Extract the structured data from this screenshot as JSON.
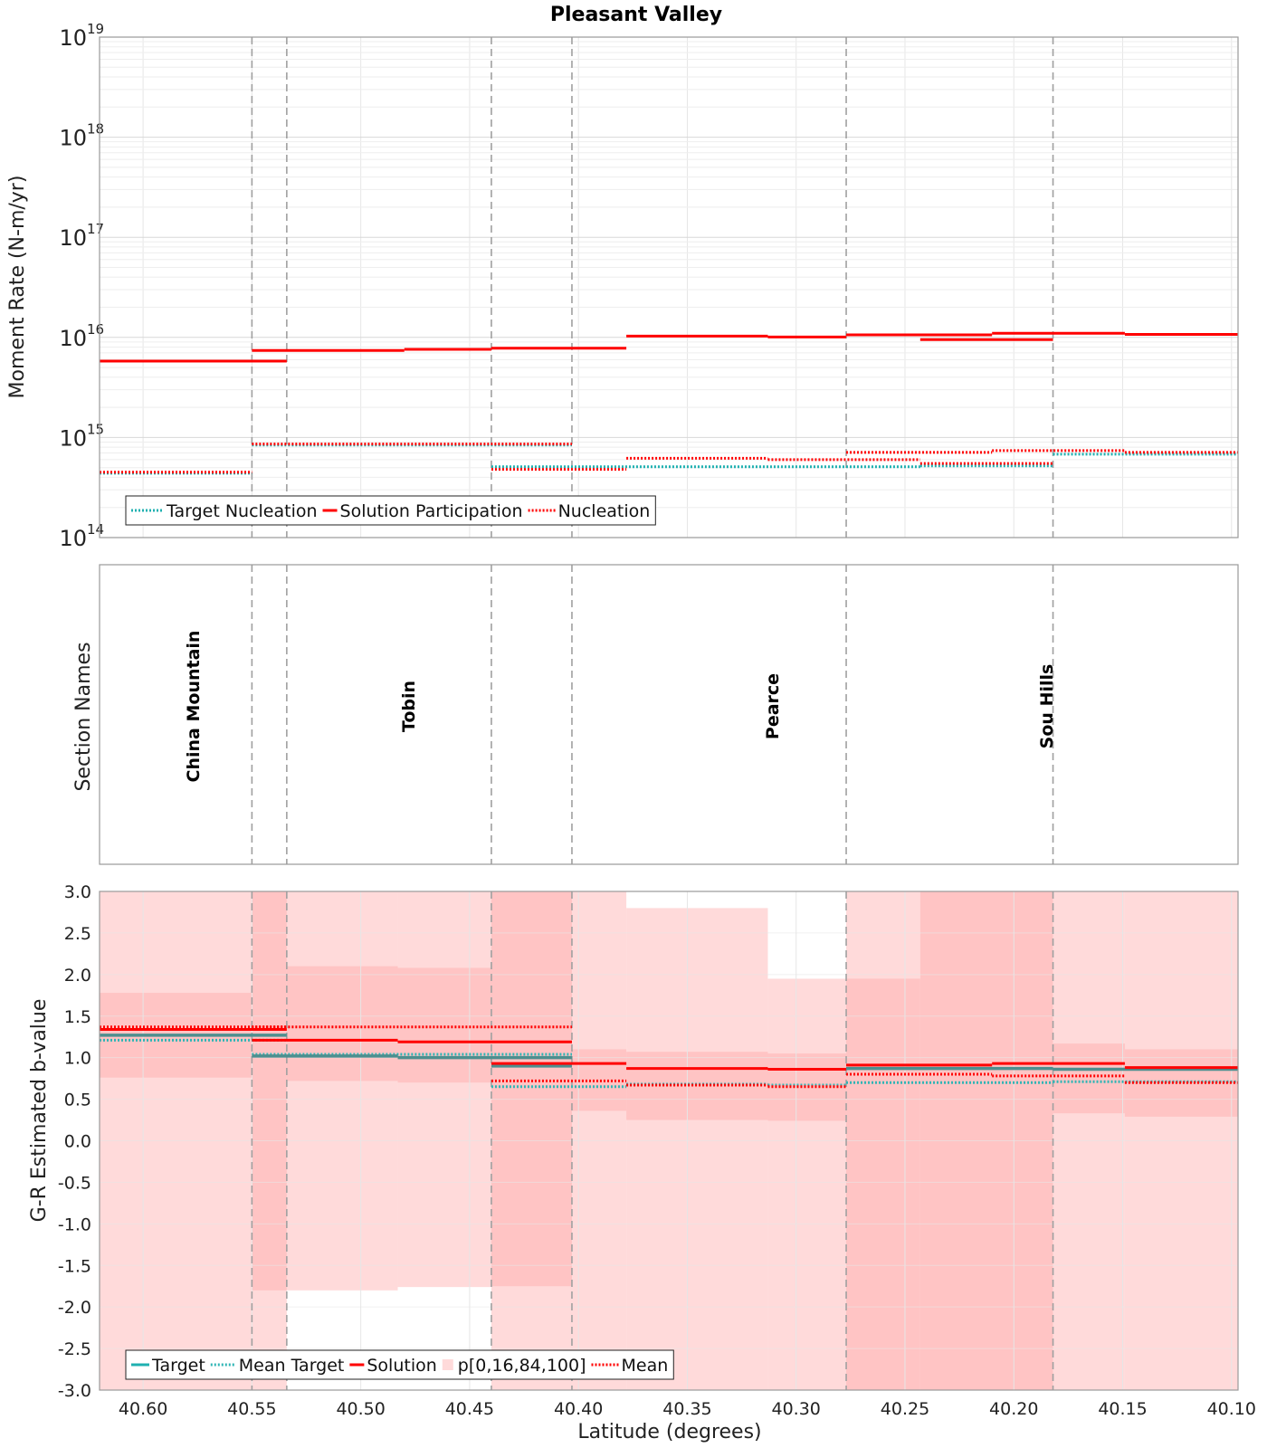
{
  "figure_title": "Pleasant Valley",
  "xlabel": "Latitude (degrees)",
  "xlim": [
    40.62,
    40.097
  ],
  "x_ticks": [
    40.6,
    40.55,
    40.5,
    40.45,
    40.4,
    40.35,
    40.3,
    40.25,
    40.2,
    40.15,
    40.1
  ],
  "x_tick_labels": [
    "40.60",
    "40.55",
    "40.50",
    "40.45",
    "40.40",
    "40.35",
    "40.30",
    "40.25",
    "40.20",
    "40.15",
    "40.10"
  ],
  "section_boundaries": [
    40.55,
    40.534,
    40.44,
    40.403,
    40.277,
    40.182
  ],
  "colors": {
    "solution": "#ff0000",
    "target": "#1fb0b0",
    "band_light": "#ffdada",
    "band_dark": "#ffbcbc",
    "mean_target": "#2fb5b5",
    "target_line_dark": "#4d8f8f",
    "grid": "#e6e6e6",
    "boundary": "#a0a0a0"
  },
  "chart_data": [
    {
      "type": "line",
      "title": "Pleasant Valley",
      "ylabel": "Moment Rate (N-m/yr)",
      "yscale": "log",
      "ylim": [
        100000000000000.0,
        1e+19
      ],
      "y_ticks": [
        {
          "base": "10",
          "exp": "14"
        },
        {
          "base": "10",
          "exp": "15"
        },
        {
          "base": "10",
          "exp": "16"
        },
        {
          "base": "10",
          "exp": "17"
        },
        {
          "base": "10",
          "exp": "18"
        },
        {
          "base": "10",
          "exp": "19"
        }
      ],
      "legend_position": "bottom-left",
      "legend": [
        "Target Nucleation",
        "Solution Participation",
        "Nucleation"
      ],
      "series": [
        {
          "name": "Solution Participation",
          "style": "solid",
          "color": "#ff0000",
          "segments": [
            {
              "x": [
                40.62,
                40.534
              ],
              "y": 5800000000000000.0
            },
            {
              "x": [
                40.55,
                40.48
              ],
              "y": 7400000000000000.0
            },
            {
              "x": [
                40.48,
                40.44
              ],
              "y": 7600000000000000.0
            },
            {
              "x": [
                40.44,
                40.403
              ],
              "y": 7800000000000000.0
            },
            {
              "x": [
                40.403,
                40.378
              ],
              "y": 7800000000000000.0
            },
            {
              "x": [
                40.378,
                40.313
              ],
              "y": 1.03e+16
            },
            {
              "x": [
                40.313,
                40.277
              ],
              "y": 1.01e+16
            },
            {
              "x": [
                40.277,
                40.21
              ],
              "y": 1.06e+16
            },
            {
              "x": [
                40.243,
                40.182
              ],
              "y": 9500000000000000.0
            },
            {
              "x": [
                40.21,
                40.149
              ],
              "y": 1.1e+16
            },
            {
              "x": [
                40.149,
                40.097
              ],
              "y": 1.07e+16
            }
          ]
        },
        {
          "name": "Target Nucleation",
          "style": "dotted",
          "color": "#1fb0b0",
          "segments": [
            {
              "x": [
                40.62,
                40.55
              ],
              "y": 440000000000000.0
            },
            {
              "x": [
                40.55,
                40.403
              ],
              "y": 840000000000000.0
            },
            {
              "x": [
                40.44,
                40.243
              ],
              "y": 510000000000000.0
            },
            {
              "x": [
                40.243,
                40.182
              ],
              "y": 520000000000000.0
            },
            {
              "x": [
                40.182,
                40.097
              ],
              "y": 680000000000000.0
            }
          ]
        },
        {
          "name": "Nucleation",
          "style": "dotted",
          "color": "#ff0000",
          "segments": [
            {
              "x": [
                40.62,
                40.55
              ],
              "y": 450000000000000.0
            },
            {
              "x": [
                40.55,
                40.403
              ],
              "y": 860000000000000.0
            },
            {
              "x": [
                40.44,
                40.378
              ],
              "y": 480000000000000.0
            },
            {
              "x": [
                40.378,
                40.313
              ],
              "y": 620000000000000.0
            },
            {
              "x": [
                40.313,
                40.243
              ],
              "y": 600000000000000.0
            },
            {
              "x": [
                40.277,
                40.21
              ],
              "y": 710000000000000.0
            },
            {
              "x": [
                40.243,
                40.182
              ],
              "y": 550000000000000.0
            },
            {
              "x": [
                40.21,
                40.149
              ],
              "y": 740000000000000.0
            },
            {
              "x": [
                40.149,
                40.097
              ],
              "y": 710000000000000.0
            }
          ]
        }
      ]
    },
    {
      "type": "table",
      "ylabel": "Section Names",
      "sections": [
        {
          "name": "China Mountain",
          "x": 40.578
        },
        {
          "name": "Tobin",
          "x": 40.479
        },
        {
          "name": "Pearce",
          "x": 40.312
        },
        {
          "name": "Sou Hills",
          "x": 40.186
        }
      ]
    },
    {
      "type": "line",
      "ylabel": "G-R Estimated b-value",
      "ylim": [
        -3.0,
        3.0
      ],
      "y_tick_labels": [
        "3.0",
        "2.5",
        "2.0",
        "1.5",
        "1.0",
        "0.5",
        "0.0",
        "-0.5",
        "-1.0",
        "-1.5",
        "-2.0",
        "-2.5",
        "-3.0"
      ],
      "legend_position": "bottom-left",
      "legend": [
        "Target",
        "Mean Target",
        "Solution",
        "p[0,16,84,100]",
        "Mean"
      ],
      "bands": [
        {
          "x": [
            40.62,
            40.55
          ],
          "p0": -3.0,
          "p100": 3.0,
          "p16": 0.76,
          "p84": 1.78
        },
        {
          "x": [
            40.55,
            40.534
          ],
          "p0": -3.0,
          "p100": 3.0,
          "p16": -1.8,
          "p84": 3.0
        },
        {
          "x": [
            40.534,
            40.483
          ],
          "p0": -1.8,
          "p100": 3.0,
          "p16": 0.72,
          "p84": 2.1
        },
        {
          "x": [
            40.483,
            40.44
          ],
          "p0": -1.76,
          "p100": 3.0,
          "p16": 0.7,
          "p84": 2.08
        },
        {
          "x": [
            40.44,
            40.403
          ],
          "p0": -3.0,
          "p100": 3.0,
          "p16": -1.75,
          "p84": 3.0
        },
        {
          "x": [
            40.403,
            40.378
          ],
          "p0": -3.0,
          "p100": 3.0,
          "p16": 0.36,
          "p84": 1.1
        },
        {
          "x": [
            40.378,
            40.313
          ],
          "p0": -3.0,
          "p100": 2.8,
          "p16": 0.25,
          "p84": 1.07
        },
        {
          "x": [
            40.313,
            40.277
          ],
          "p0": -3.0,
          "p100": 1.95,
          "p16": 0.24,
          "p84": 1.05
        },
        {
          "x": [
            40.277,
            40.243
          ],
          "p0": -3.0,
          "p100": 3.0,
          "p16": -3.0,
          "p84": 1.95
        },
        {
          "x": [
            40.243,
            40.182
          ],
          "p0": -3.0,
          "p100": 3.0,
          "p16": -3.0,
          "p84": 3.0
        },
        {
          "x": [
            40.182,
            40.149
          ],
          "p0": -3.0,
          "p100": 3.0,
          "p16": 0.33,
          "p84": 1.17
        },
        {
          "x": [
            40.149,
            40.097
          ],
          "p0": -3.0,
          "p100": 3.0,
          "p16": 0.29,
          "p84": 1.1
        }
      ],
      "series": [
        {
          "name": "Solution",
          "style": "solid",
          "color": "#ff0000",
          "segments": [
            {
              "x": [
                40.62,
                40.534
              ],
              "y": 1.34
            },
            {
              "x": [
                40.55,
                40.483
              ],
              "y": 1.21
            },
            {
              "x": [
                40.483,
                40.403
              ],
              "y": 1.19
            },
            {
              "x": [
                40.44,
                40.378
              ],
              "y": 0.93
            },
            {
              "x": [
                40.378,
                40.313
              ],
              "y": 0.87
            },
            {
              "x": [
                40.313,
                40.277
              ],
              "y": 0.86
            },
            {
              "x": [
                40.277,
                40.21
              ],
              "y": 0.91
            },
            {
              "x": [
                40.21,
                40.149
              ],
              "y": 0.93
            },
            {
              "x": [
                40.149,
                40.097
              ],
              "y": 0.88
            }
          ]
        },
        {
          "name": "Target",
          "style": "solid",
          "color": "#4d8f8f",
          "segments": [
            {
              "x": [
                40.62,
                40.534
              ],
              "y": 1.27
            },
            {
              "x": [
                40.55,
                40.483
              ],
              "y": 1.02
            },
            {
              "x": [
                40.483,
                40.403
              ],
              "y": 1.0
            },
            {
              "x": [
                40.44,
                40.403
              ],
              "y": 0.9
            },
            {
              "x": [
                40.277,
                40.182
              ],
              "y": 0.87
            },
            {
              "x": [
                40.182,
                40.097
              ],
              "y": 0.86
            }
          ]
        },
        {
          "name": "Mean Target",
          "style": "dotted",
          "color": "#2fb5b5",
          "segments": [
            {
              "x": [
                40.62,
                40.534
              ],
              "y": 1.21
            },
            {
              "x": [
                40.55,
                40.403
              ],
              "y": 1.04
            },
            {
              "x": [
                40.44,
                40.378
              ],
              "y": 0.65
            },
            {
              "x": [
                40.378,
                40.313
              ],
              "y": 0.68
            },
            {
              "x": [
                40.313,
                40.277
              ],
              "y": 0.67
            },
            {
              "x": [
                40.277,
                40.182
              ],
              "y": 0.7
            },
            {
              "x": [
                40.182,
                40.097
              ],
              "y": 0.71
            }
          ]
        },
        {
          "name": "Mean",
          "style": "dotted",
          "color": "#ff0000",
          "segments": [
            {
              "x": [
                40.62,
                40.534
              ],
              "y": 1.37
            },
            {
              "x": [
                40.55,
                40.403
              ],
              "y": 1.37
            },
            {
              "x": [
                40.44,
                40.378
              ],
              "y": 0.72
            },
            {
              "x": [
                40.378,
                40.313
              ],
              "y": 0.67
            },
            {
              "x": [
                40.313,
                40.277
              ],
              "y": 0.65
            },
            {
              "x": [
                40.277,
                40.21
              ],
              "y": 0.8
            },
            {
              "x": [
                40.21,
                40.149
              ],
              "y": 0.78
            },
            {
              "x": [
                40.149,
                40.097
              ],
              "y": 0.7
            }
          ]
        }
      ]
    }
  ]
}
